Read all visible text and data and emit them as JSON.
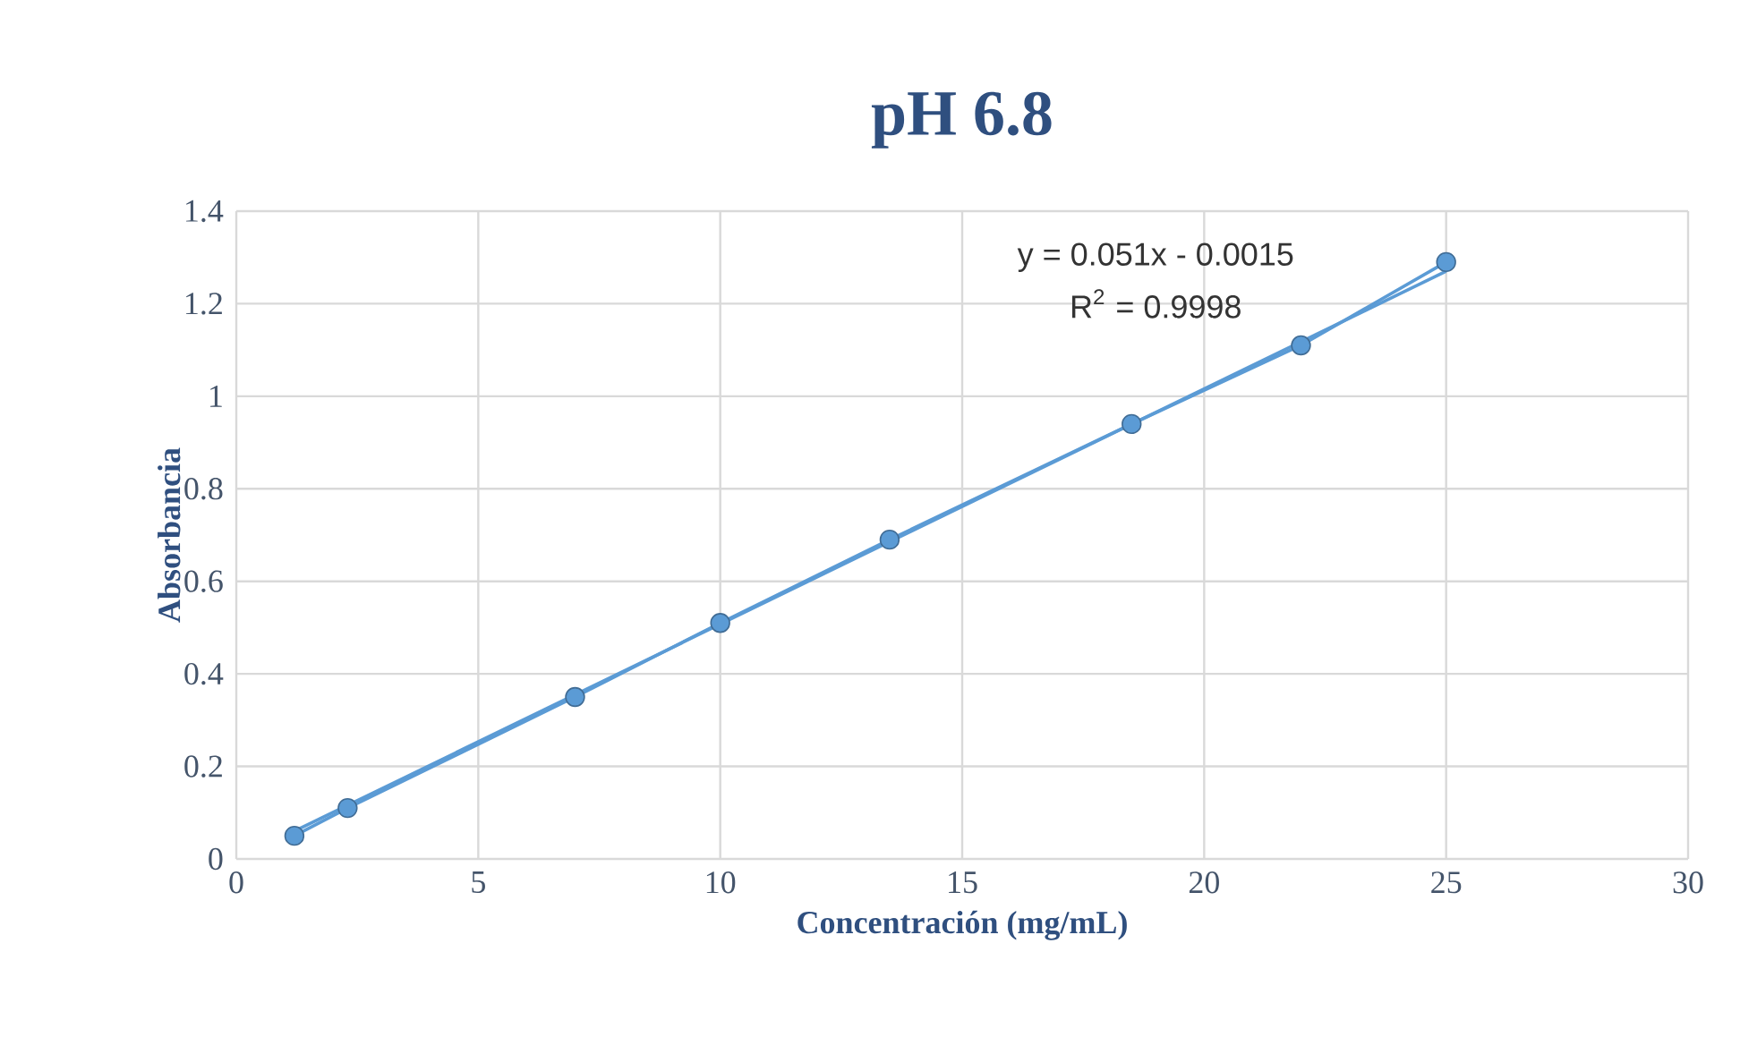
{
  "chart_data": {
    "type": "line",
    "title": "pH 6.8",
    "xlabel": "Concentración (mg/mL)",
    "ylabel": "Absorbancia",
    "xlim": [
      0,
      30
    ],
    "xticks": [
      0,
      5,
      10,
      15,
      20,
      25,
      30
    ],
    "ylim": [
      0,
      1.4
    ],
    "yticks": [
      0,
      0.2,
      0.4,
      0.6,
      0.8,
      1,
      1.2,
      1.4
    ],
    "grid": true,
    "series": [
      {
        "marker": "circle",
        "color": "#5b9bd5",
        "x": [
          1.2,
          2.3,
          7,
          10,
          13.5,
          18.5,
          22,
          25
        ],
        "values": [
          0.05,
          0.11,
          0.35,
          0.51,
          0.69,
          0.94,
          1.11,
          1.29
        ]
      },
      {
        "marker": "none",
        "color": "#5b9bd5",
        "x": [
          1.2,
          25
        ],
        "values": [
          0.06,
          1.27
        ]
      }
    ],
    "annotations": [
      "y = 0.051x - 0.0015",
      "R$^{2}$ = 0.9998"
    ]
  }
}
